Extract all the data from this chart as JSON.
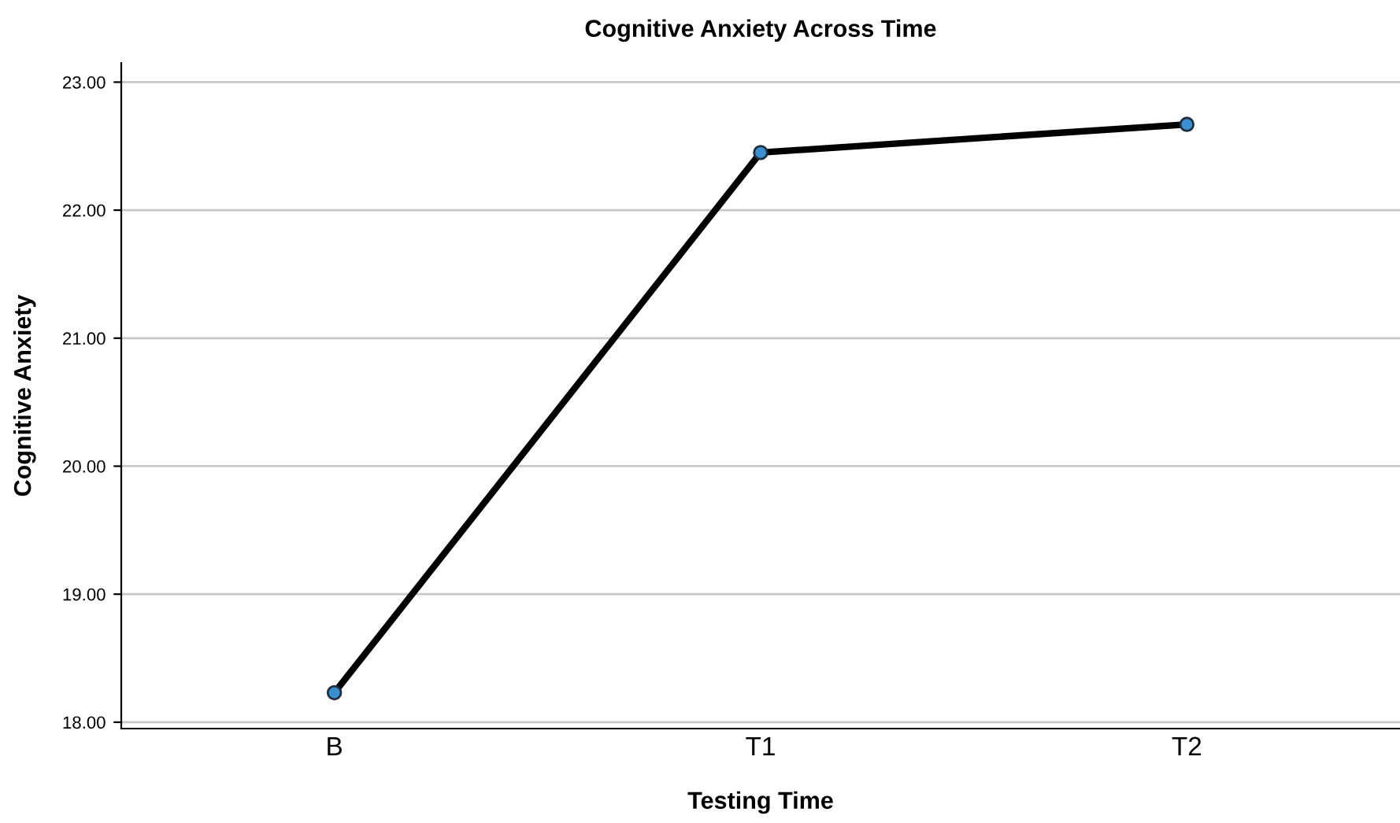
{
  "chart_data": {
    "type": "line",
    "title": "Cognitive Anxiety Across Time",
    "xlabel": "Testing Time",
    "ylabel": "Cognitive Anxiety",
    "categories": [
      "B",
      "T1",
      "T2"
    ],
    "series": [
      {
        "color": "#000000",
        "values": [
          18.23,
          22.45,
          22.67
        ]
      }
    ],
    "ylim": [
      17.95,
      23.15
    ],
    "yticks": [
      {
        "value": 18,
        "label": "18.00"
      },
      {
        "value": 19,
        "label": "19.00"
      },
      {
        "value": 20,
        "label": "20.00"
      },
      {
        "value": 21,
        "label": "21.00"
      },
      {
        "value": 22,
        "label": "22.00"
      },
      {
        "value": 23,
        "label": "23.00"
      }
    ],
    "grid": "y",
    "marker": "circle",
    "line_style": "solid"
  }
}
